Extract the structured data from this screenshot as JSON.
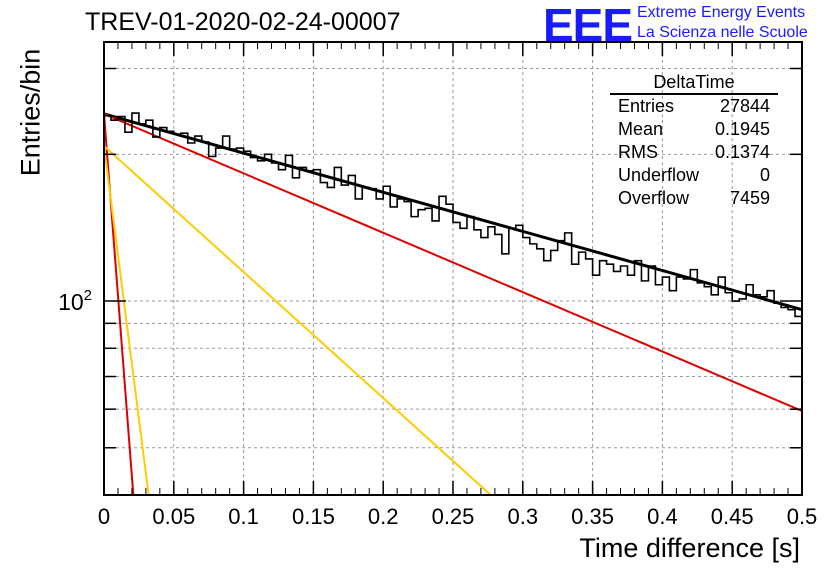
{
  "header": {
    "title": "TREV-01-2020-02-24-00007",
    "logo": "EEE",
    "logo_line1": "Extreme Energy Events",
    "logo_line2": "La Scienza nelle Scuole"
  },
  "stats_box": {
    "title": "DeltaTime",
    "rows": [
      {
        "label": "Entries",
        "value": "27844"
      },
      {
        "label": "Mean",
        "value": "0.1945"
      },
      {
        "label": "RMS",
        "value": "0.1374"
      },
      {
        "label": "Underflow",
        "value": "0"
      },
      {
        "label": "Overflow",
        "value": "7459"
      }
    ]
  },
  "chart_data": {
    "type": "histogram",
    "xlabel": "Time difference [s]",
    "ylabel": "Entries/bin",
    "xlim": [
      0,
      0.5
    ],
    "ylim": [
      40,
      340
    ],
    "yscale": "log",
    "grid": true,
    "x_ticks": [
      "0",
      "0.05",
      "0.1",
      "0.15",
      "0.2",
      "0.25",
      "0.3",
      "0.35",
      "0.4",
      "0.45",
      "0.5"
    ],
    "y_tick_label": "10^2",
    "bin_width": 0.005,
    "histogram_values": [
      240,
      235,
      239,
      222,
      243,
      231,
      235,
      217,
      227,
      223,
      220,
      221,
      211,
      218,
      212,
      198,
      206,
      218,
      205,
      206,
      203,
      197,
      194,
      200,
      192,
      186,
      199,
      179,
      188,
      185,
      186,
      175,
      171,
      188,
      173,
      181,
      162,
      171,
      170,
      162,
      172,
      156,
      162,
      160,
      149,
      154,
      155,
      146,
      164,
      158,
      145,
      141,
      149,
      140,
      135,
      142,
      137,
      125,
      141,
      143,
      135,
      131,
      128,
      121,
      127,
      133,
      138,
      119,
      126,
      122,
      113,
      121,
      119,
      115,
      118,
      113,
      121,
      110,
      118,
      108,
      112,
      105,
      112,
      111,
      116,
      109,
      107,
      103,
      112,
      104,
      100,
      101,
      108,
      103,
      102,
      105,
      99,
      97,
      96,
      93
    ],
    "series": [
      {
        "name": "",
        "color": "#000000",
        "kind": "fit_total",
        "x": [
          0,
          0.5
        ],
        "y": [
          242,
          96
        ]
      },
      {
        "name": "",
        "color": "#dd0000",
        "kind": "slow_component",
        "x": [
          0,
          0.5
        ],
        "y": [
          242,
          59.5
        ]
      },
      {
        "name": "",
        "color": "#dd0000",
        "kind": "fast_component",
        "x": [
          0,
          0.021
        ],
        "y": [
          242,
          40
        ]
      },
      {
        "name": "",
        "color": "#ffcc00",
        "kind": "medium_component",
        "x": [
          0,
          0.277
        ],
        "y": [
          208,
          40
        ]
      },
      {
        "name": "",
        "color": "#ffcc00",
        "kind": "fast_component_2",
        "x": [
          0,
          0.032
        ],
        "y": [
          208,
          40
        ]
      }
    ]
  }
}
